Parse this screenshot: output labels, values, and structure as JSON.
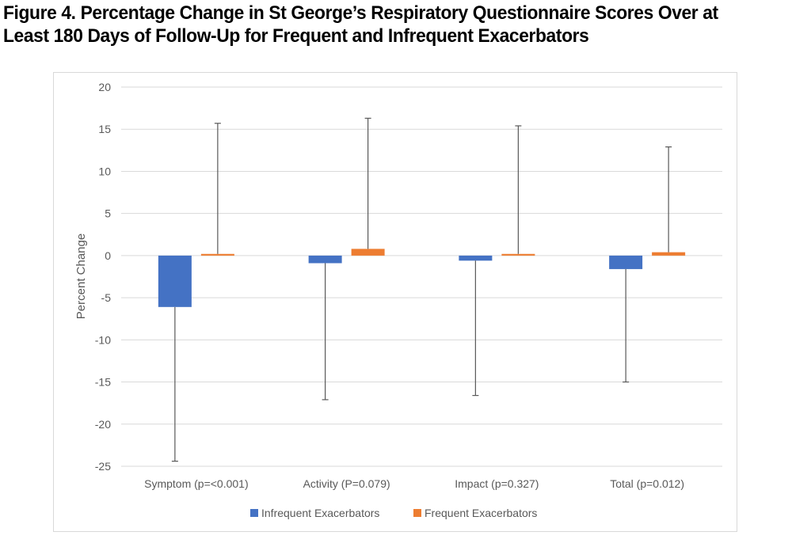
{
  "figure": {
    "title_line1": "Figure 4. Percentage Change in St George’s Respiratory Questionnaire Scores Over at",
    "title_line2": "Least 180 Days of Follow-Up for Frequent and Infrequent Exacerbators"
  },
  "chart_data": {
    "type": "bar",
    "categories": [
      "Symptom (p=<0.001)",
      "Activity (P=0.079)",
      "Impact (p=0.327)",
      "Total (p=0.012)"
    ],
    "series": [
      {
        "name": "Infrequent Exacerbators",
        "color": "#4472c4",
        "values": [
          -6.1,
          -0.9,
          -0.6,
          -1.6
        ],
        "error_bar_end": [
          -24.4,
          -17.1,
          -16.6,
          -15.0
        ]
      },
      {
        "name": "Frequent Exacerbators",
        "color": "#ed7d31",
        "values": [
          0.2,
          0.8,
          0.2,
          0.4
        ],
        "error_bar_end": [
          15.7,
          16.3,
          15.4,
          12.9
        ]
      }
    ],
    "ylabel": "Percent Change",
    "ylim": [
      -25,
      20
    ],
    "yticks": [
      -25,
      -20,
      -15,
      -10,
      -5,
      0,
      5,
      10,
      15,
      20
    ],
    "grid": true,
    "legend_position": "bottom"
  }
}
